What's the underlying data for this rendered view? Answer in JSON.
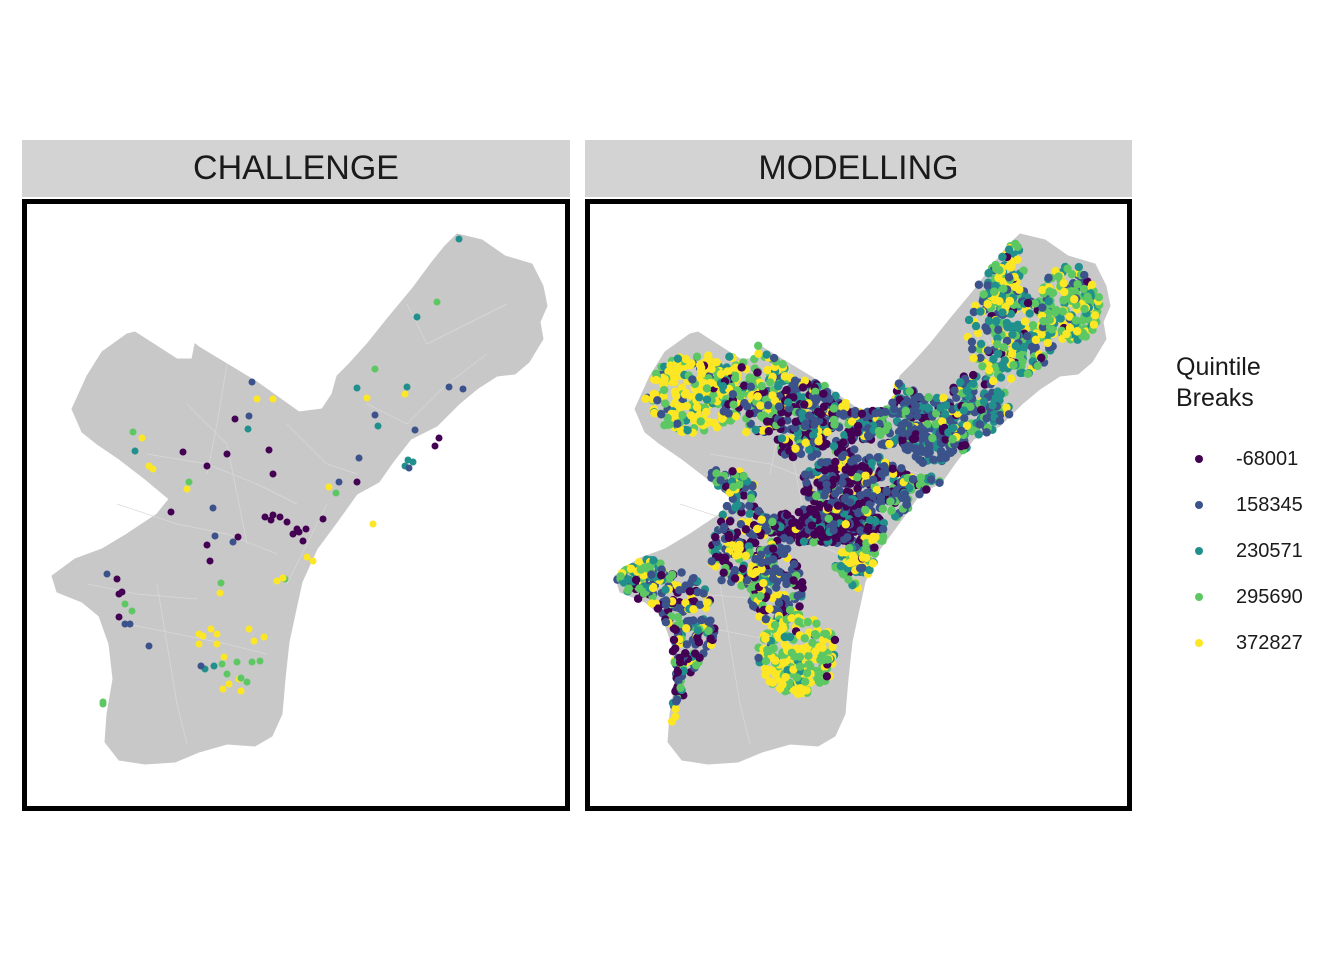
{
  "facets": [
    {
      "label": "CHALLENGE"
    },
    {
      "label": "MODELLING"
    }
  ],
  "legend": {
    "title": "Quintile\nBreaks",
    "items": [
      {
        "label": "-68001",
        "color": "#440154"
      },
      {
        "label": "158345",
        "color": "#3B528B"
      },
      {
        "label": "230571",
        "color": "#21908C"
      },
      {
        "label": "295690",
        "color": "#5DC863"
      },
      {
        "label": "372827",
        "color": "#FDE725"
      }
    ]
  },
  "map": {
    "basemap_fill": "#c8c8c8",
    "tract_line_color": "#d9d9d9",
    "marker_shape": "circle"
  }
}
